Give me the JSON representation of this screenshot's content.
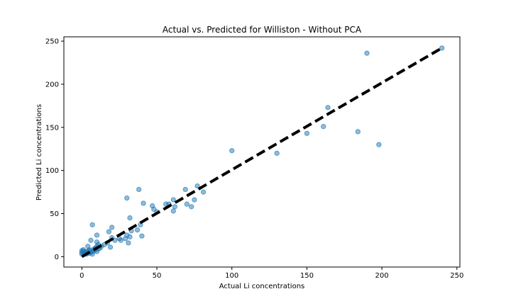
{
  "chart_data": {
    "type": "scatter",
    "title": "Actual vs. Predicted for Williston - Without PCA",
    "xlabel": "Actual Li concentrations",
    "ylabel": "Predicted Li concentrations",
    "xlim": [
      -12,
      252
    ],
    "ylim": [
      -12,
      255
    ],
    "xticks": [
      0,
      50,
      100,
      150,
      200,
      250
    ],
    "yticks": [
      0,
      50,
      100,
      150,
      200,
      250
    ],
    "grid": false,
    "point_color": "#1f77b4",
    "line_color": "#000000",
    "reference_line": {
      "x": [
        0,
        240
      ],
      "y": [
        0,
        242
      ]
    },
    "points": [
      [
        0,
        3
      ],
      [
        0,
        5
      ],
      [
        0,
        7
      ],
      [
        1,
        4
      ],
      [
        1,
        6
      ],
      [
        1,
        8
      ],
      [
        2,
        4
      ],
      [
        2,
        6
      ],
      [
        3,
        3
      ],
      [
        3,
        5
      ],
      [
        4,
        6
      ],
      [
        4,
        12
      ],
      [
        5,
        4
      ],
      [
        5,
        7
      ],
      [
        5,
        8
      ],
      [
        6,
        5
      ],
      [
        6,
        19
      ],
      [
        7,
        3
      ],
      [
        7,
        6
      ],
      [
        7,
        37
      ],
      [
        8,
        7
      ],
      [
        8,
        9
      ],
      [
        9,
        8
      ],
      [
        9,
        10
      ],
      [
        10,
        6
      ],
      [
        10,
        12
      ],
      [
        10,
        17
      ],
      [
        10,
        25
      ],
      [
        11,
        9
      ],
      [
        11,
        14
      ],
      [
        12,
        10
      ],
      [
        13,
        12
      ],
      [
        15,
        14
      ],
      [
        17,
        16
      ],
      [
        18,
        29
      ],
      [
        19,
        11
      ],
      [
        20,
        22
      ],
      [
        20,
        34
      ],
      [
        22,
        19
      ],
      [
        25,
        21
      ],
      [
        26,
        19
      ],
      [
        29,
        21
      ],
      [
        30,
        25
      ],
      [
        30,
        68
      ],
      [
        31,
        16
      ],
      [
        32,
        45
      ],
      [
        32,
        23
      ],
      [
        33,
        30
      ],
      [
        37,
        31
      ],
      [
        38,
        78
      ],
      [
        39,
        37
      ],
      [
        40,
        24
      ],
      [
        41,
        62
      ],
      [
        47,
        59
      ],
      [
        48,
        55
      ],
      [
        50,
        52
      ],
      [
        56,
        61
      ],
      [
        58,
        61
      ],
      [
        61,
        66
      ],
      [
        61,
        53
      ],
      [
        62,
        58
      ],
      [
        69,
        78
      ],
      [
        70,
        61
      ],
      [
        73,
        58
      ],
      [
        75,
        66
      ],
      [
        77,
        82
      ],
      [
        81,
        75
      ],
      [
        100,
        123
      ],
      [
        130,
        120
      ],
      [
        150,
        143
      ],
      [
        161,
        151
      ],
      [
        164,
        173
      ],
      [
        184,
        145
      ],
      [
        190,
        236
      ],
      [
        198,
        130
      ],
      [
        240,
        242
      ]
    ]
  }
}
